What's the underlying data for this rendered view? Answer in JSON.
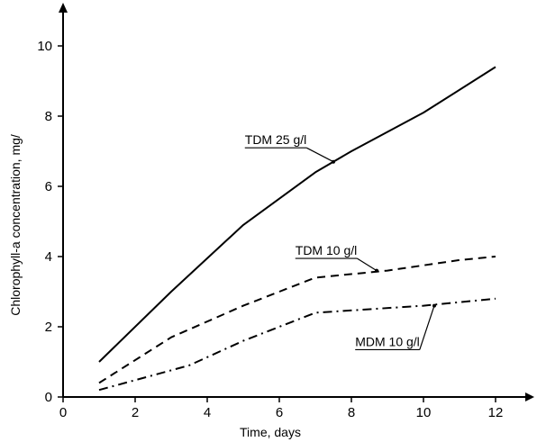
{
  "chart_data": {
    "type": "line",
    "xlabel": "Time, days",
    "ylabel": "Chlorophyll-a concentration, mg/",
    "xlim": [
      0,
      12.8
    ],
    "ylim": [
      0,
      11
    ],
    "xticks": [
      0,
      2,
      4,
      6,
      8,
      10,
      12
    ],
    "yticks": [
      0,
      2,
      4,
      6,
      8,
      10
    ],
    "grid": false,
    "series": [
      {
        "name": "TDM 25 g/l",
        "style": "solid",
        "x": [
          1,
          3,
          5,
          7,
          8,
          10,
          12
        ],
        "y": [
          1.0,
          3.0,
          4.9,
          6.4,
          7.0,
          8.1,
          9.4
        ]
      },
      {
        "name": "TDM 10 g/l",
        "style": "dashed",
        "x": [
          1,
          3,
          5,
          7,
          9,
          11,
          12
        ],
        "y": [
          0.4,
          1.7,
          2.6,
          3.4,
          3.6,
          3.9,
          4.0
        ]
      },
      {
        "name": "MDM 10 g/l",
        "style": "dashdot",
        "x": [
          1,
          3.5,
          5,
          7,
          10,
          12
        ],
        "y": [
          0.2,
          0.9,
          1.6,
          2.4,
          2.6,
          2.8
        ]
      }
    ],
    "annotations": [
      {
        "text": "TDM 25 g/l",
        "series": 0,
        "points_to": [
          7.5,
          6.7
        ]
      },
      {
        "text": "TDM 10 g/l",
        "series": 1,
        "points_to": [
          8.7,
          3.6
        ]
      },
      {
        "text": "MDM 10 g/l",
        "series": 2,
        "points_to": [
          10.3,
          2.6
        ]
      }
    ]
  }
}
